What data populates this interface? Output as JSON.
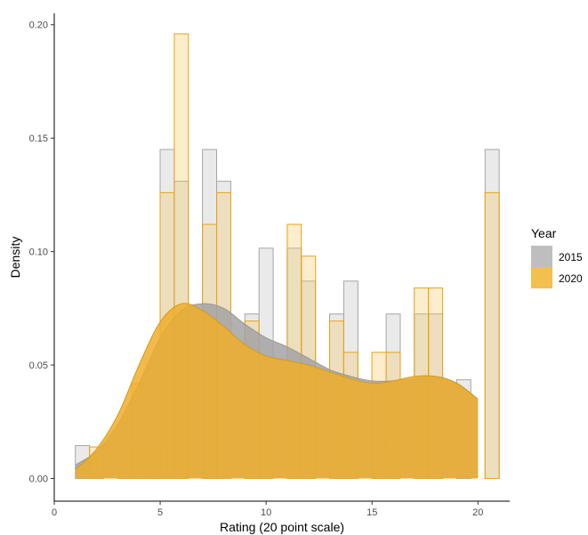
{
  "chart_data": {
    "type": "histogram-density",
    "xlabel": "Rating (20 point scale)",
    "ylabel": "Density",
    "xlim": [
      0,
      21.5
    ],
    "ylim": [
      -0.01,
      0.205
    ],
    "x_ticks": [
      0,
      5,
      10,
      15,
      20
    ],
    "x_tick_labels": [
      "0",
      "5",
      "10",
      "15",
      "20"
    ],
    "y_ticks": [
      0.0,
      0.05,
      0.1,
      0.15,
      0.2
    ],
    "y_tick_labels": [
      "0.00",
      "0.05",
      "0.10",
      "0.15",
      "0.20"
    ],
    "grid": false,
    "legend": {
      "title": "Year",
      "position": "right",
      "entries": [
        {
          "label": "2015",
          "color": "#b3b3b3"
        },
        {
          "label": "2020",
          "color": "#f0b93c"
        }
      ]
    },
    "bin_width": 0.667,
    "bin_centers": [
      1.33,
      2.0,
      2.67,
      3.33,
      4.0,
      4.67,
      5.33,
      6.0,
      6.67,
      7.33,
      8.0,
      8.67,
      9.33,
      10.0,
      10.67,
      11.33,
      12.0,
      12.67,
      13.33,
      14.0,
      14.67,
      15.33,
      16.0,
      16.67,
      17.33,
      18.0,
      18.67,
      19.33,
      20.0,
      20.67
    ],
    "series": [
      {
        "name": "2015",
        "color": "#b3b3b3",
        "histogram": [
          0.0145,
          0.0,
          0.0,
          0.0,
          0.0,
          0.0,
          0.145,
          0.131,
          0.0,
          0.145,
          0.131,
          0.0,
          0.0725,
          0.1015,
          0.0,
          0.1015,
          0.087,
          0.0,
          0.0725,
          0.087,
          0.0,
          0.0145,
          0.0725,
          0.0,
          0.0725,
          0.0725,
          0.0,
          0.0435,
          0.0,
          0.145
        ],
        "density": {
          "x": [
            1,
            2,
            3,
            4,
            5,
            6,
            7,
            8,
            9,
            10,
            11,
            12,
            13,
            14,
            15,
            16,
            17,
            18,
            19,
            20
          ],
          "y": [
            0.006,
            0.012,
            0.024,
            0.042,
            0.062,
            0.074,
            0.077,
            0.075,
            0.068,
            0.062,
            0.058,
            0.053,
            0.048,
            0.045,
            0.043,
            0.043,
            0.044,
            0.045,
            0.042,
            0.035
          ]
        }
      },
      {
        "name": "2020",
        "color": "#f0b93c",
        "histogram": [
          0.0,
          0.0139,
          0.0,
          0.0139,
          0.0417,
          0.0139,
          0.126,
          0.196,
          0.0,
          0.112,
          0.126,
          0.0,
          0.0694,
          0.0417,
          0.0,
          0.112,
          0.098,
          0.0,
          0.0694,
          0.0556,
          0.0,
          0.0556,
          0.0556,
          0.0,
          0.084,
          0.084,
          0.0,
          0.0,
          0.0,
          0.126
        ],
        "density": {
          "x": [
            1,
            2,
            3,
            4,
            5,
            6,
            7,
            8,
            9,
            10,
            11,
            12,
            13,
            14,
            15,
            16,
            17,
            18,
            19,
            20
          ],
          "y": [
            0.004,
            0.013,
            0.028,
            0.05,
            0.069,
            0.077,
            0.074,
            0.067,
            0.059,
            0.054,
            0.052,
            0.05,
            0.047,
            0.044,
            0.042,
            0.043,
            0.045,
            0.045,
            0.042,
            0.035
          ]
        }
      }
    ]
  }
}
